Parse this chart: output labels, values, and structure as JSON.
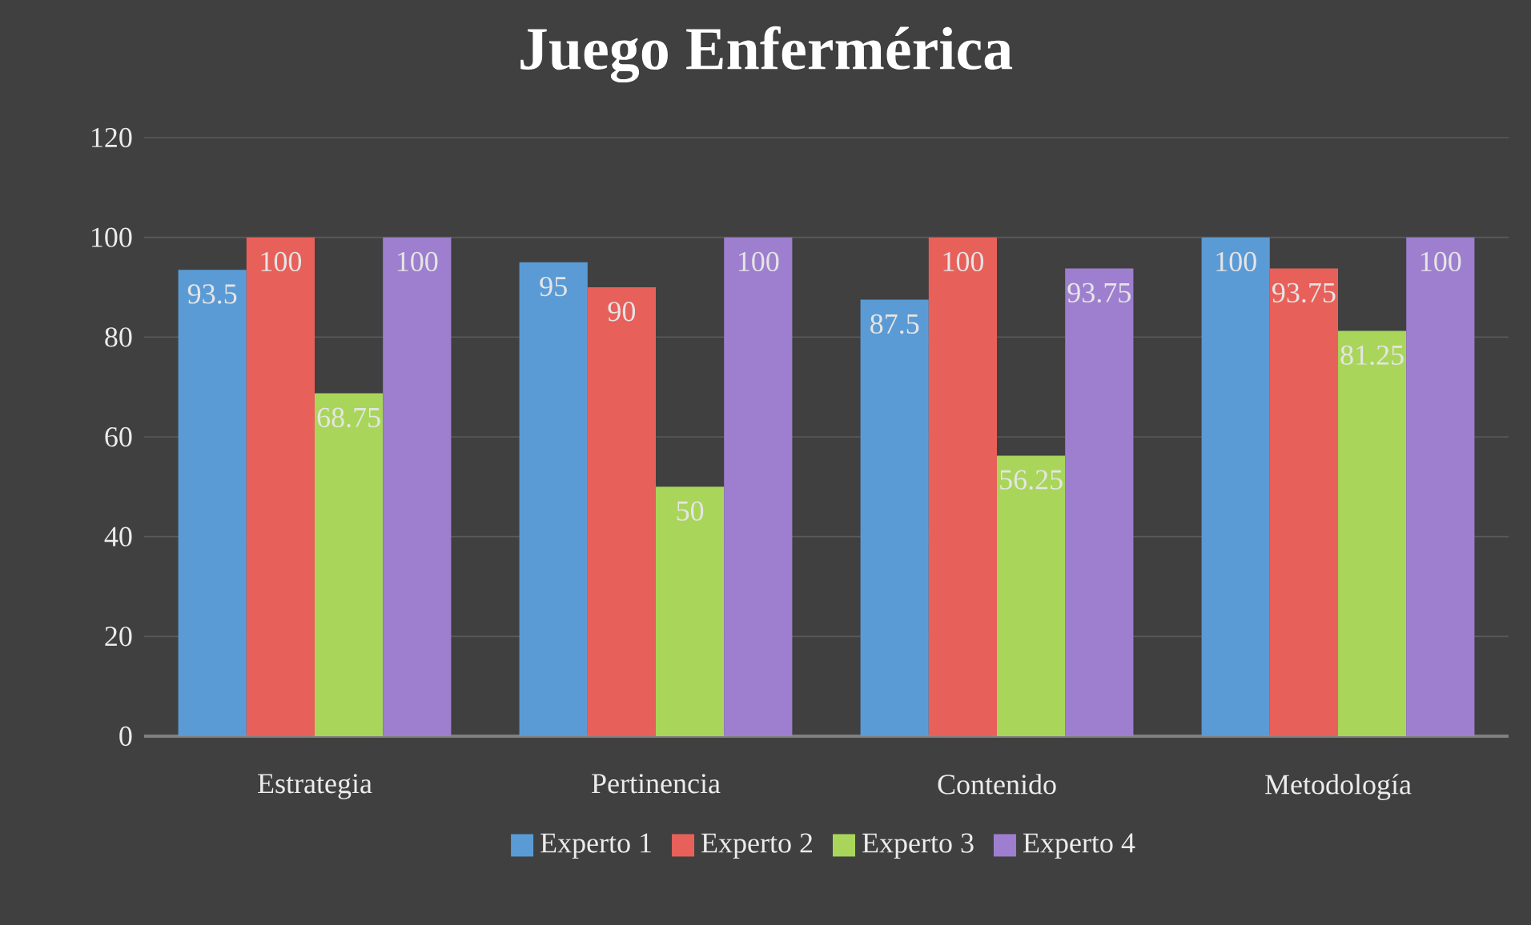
{
  "chart_data": {
    "type": "bar",
    "title": "Juego Enfermérica",
    "categories": [
      "Estrategia",
      "Pertinencia",
      "Contenido",
      "Metodología"
    ],
    "series": [
      {
        "name": "Experto 1",
        "color": "#5b9bd5",
        "values": [
          93.5,
          95,
          87.5,
          100
        ]
      },
      {
        "name": "Experto 2",
        "color": "#e8605a",
        "values": [
          100,
          90,
          100,
          93.75
        ]
      },
      {
        "name": "Experto 3",
        "color": "#a9d65a",
        "values": [
          68.75,
          50,
          56.25,
          81.25
        ]
      },
      {
        "name": "Experto 4",
        "color": "#9e7fcf",
        "values": [
          100,
          100,
          93.75,
          100
        ]
      }
    ],
    "ylim": [
      0,
      120
    ],
    "yticks": [
      0,
      20,
      40,
      60,
      80,
      100,
      120
    ],
    "grid": "y",
    "legend": "bottom",
    "data_labels": true
  }
}
